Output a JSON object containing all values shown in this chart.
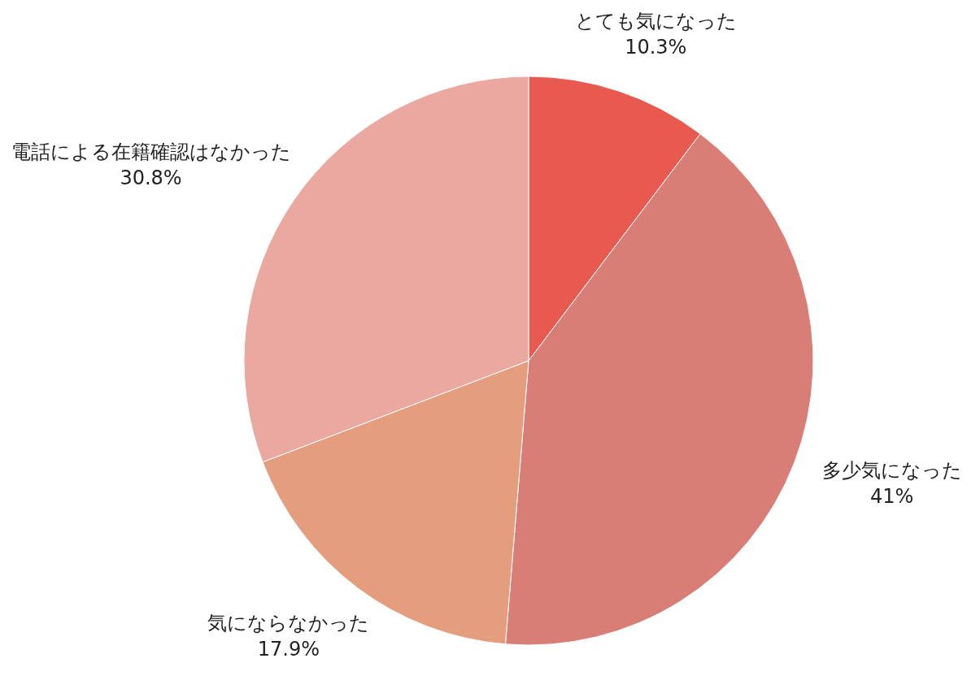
{
  "chart_data": {
    "type": "pie",
    "categories": [
      "とても気になった",
      "多少気になった",
      "気にならなかった",
      "電話による在籍確認はなかった"
    ],
    "values": [
      10.3,
      41,
      17.9,
      30.8
    ],
    "value_labels": [
      "10.3%",
      "41%",
      "17.9%",
      "30.8%"
    ],
    "colors": [
      "#e85a4f",
      "#d97e76",
      "#e49e7e",
      "#eaa8a0"
    ]
  }
}
